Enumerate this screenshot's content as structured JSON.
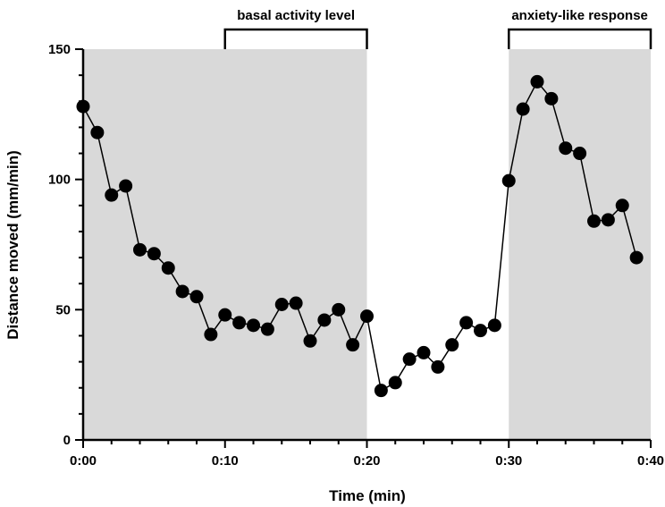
{
  "chart_data": {
    "type": "line",
    "title": "",
    "xlabel": "Time (min)",
    "ylabel": "Distance moved (mm/min)",
    "xlim": [
      0,
      40
    ],
    "ylim": [
      0,
      150
    ],
    "x_ticks": [
      {
        "value": 0,
        "label": "0:00"
      },
      {
        "value": 10,
        "label": "0:10"
      },
      {
        "value": 20,
        "label": "0:20"
      },
      {
        "value": 30,
        "label": "0:30"
      },
      {
        "value": 40,
        "label": "0:40"
      }
    ],
    "y_ticks": [
      {
        "value": 0,
        "label": "0"
      },
      {
        "value": 50,
        "label": "50"
      },
      {
        "value": 100,
        "label": "100"
      },
      {
        "value": 150,
        "label": "150"
      }
    ],
    "shaded_regions": [
      {
        "x_start": 0,
        "x_end": 20,
        "color": "#d9d9d9"
      },
      {
        "x_start": 30,
        "x_end": 40,
        "color": "#d9d9d9"
      }
    ],
    "brackets": [
      {
        "x_start": 10,
        "x_end": 20,
        "label": "basal activity level"
      },
      {
        "x_start": 30,
        "x_end": 40,
        "label": "anxiety-like response"
      }
    ],
    "series": [
      {
        "color": "#000000",
        "x": [
          0,
          1,
          2,
          3,
          4,
          5,
          6,
          7,
          8,
          9,
          10,
          11,
          12,
          13,
          14,
          15,
          16,
          17,
          18,
          19,
          20,
          21,
          22,
          23,
          24,
          25,
          26,
          27,
          28,
          29,
          30,
          31,
          32,
          33,
          34,
          35,
          36,
          37,
          38,
          39
        ],
        "values": [
          128,
          118,
          94,
          97.5,
          73,
          71.5,
          66,
          57,
          55,
          40.5,
          48,
          45,
          44,
          42.5,
          52,
          52.5,
          38,
          46,
          50,
          36.5,
          47.5,
          19,
          22,
          31,
          33.5,
          28,
          36.5,
          45,
          42,
          44,
          99.5,
          127,
          137.5,
          131,
          112,
          110,
          84,
          84.5,
          90,
          70
        ]
      }
    ]
  }
}
